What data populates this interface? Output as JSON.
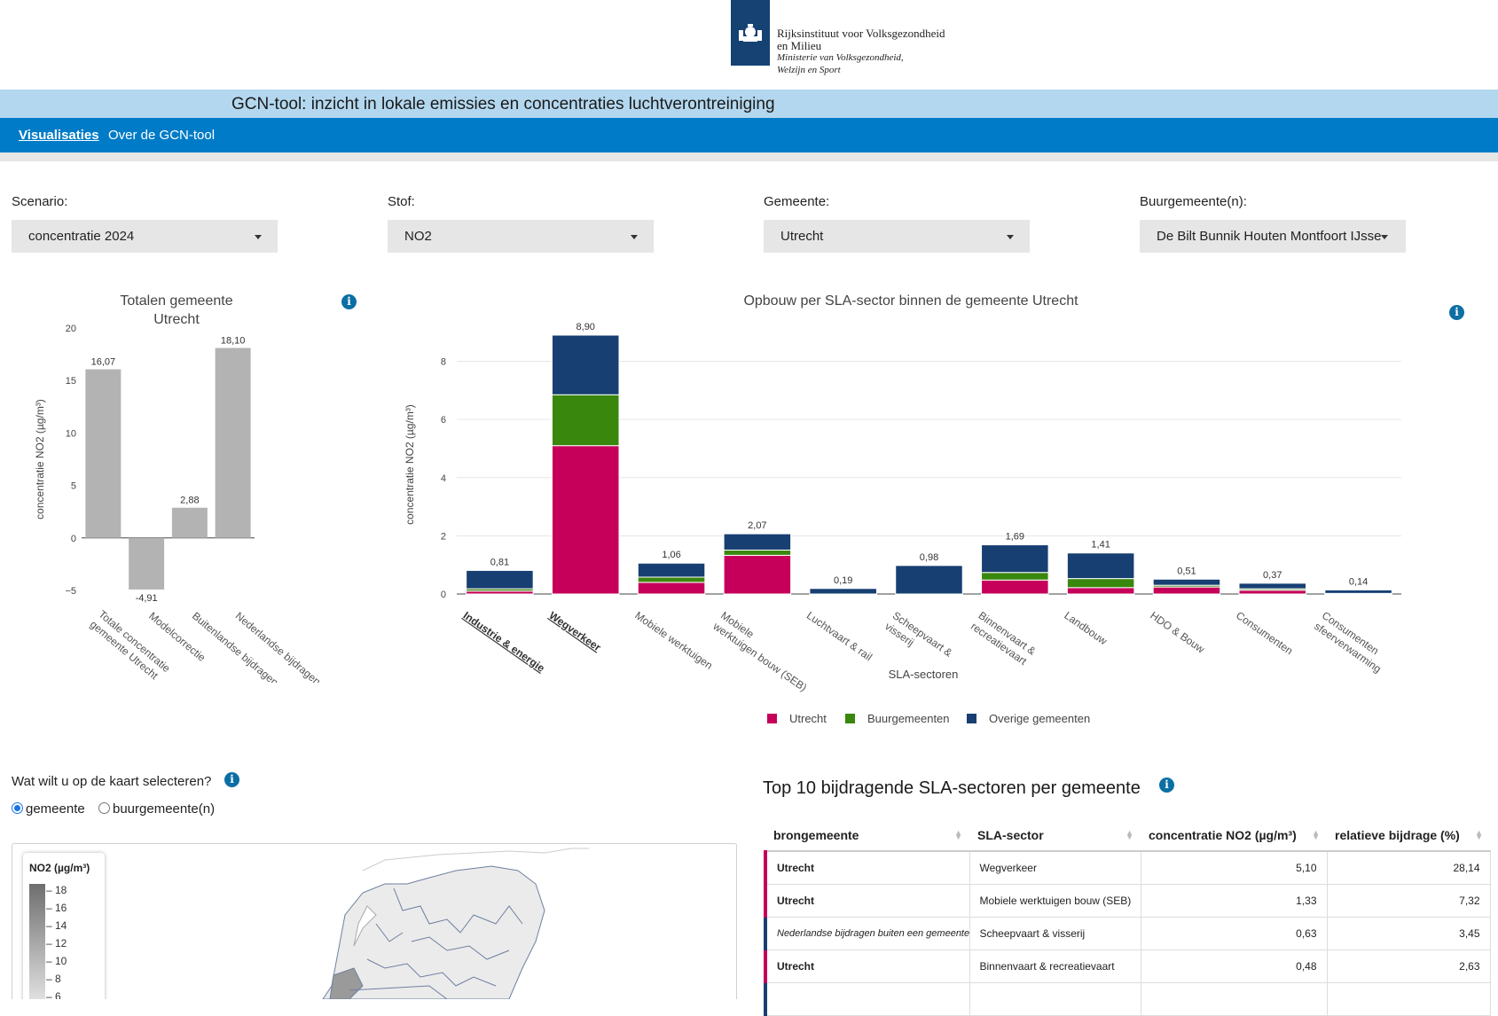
{
  "header": {
    "logo_line1": "Rijksinstituut voor Volksgezondheid",
    "logo_line2": "en Milieu",
    "logo_line3": "Ministerie van Volksgezondheid,",
    "logo_line4": "Welzijn en Sport",
    "app_title": "GCN-tool: inzicht in lokale emissies en concentraties luchtverontreiniging"
  },
  "nav": {
    "visualisaties": "Visualisaties",
    "over": "Over de GCN-tool"
  },
  "filters": {
    "scenario_label": "Scenario:",
    "scenario_value": "concentratie 2024",
    "stof_label": "Stof:",
    "stof_value": "NO2",
    "gemeente_label": "Gemeente:",
    "gemeente_value": "Utrecht",
    "buur_label": "Buurgemeente(n):",
    "buur_value": "De Bilt Bunnik Houten Montfoort IJsse"
  },
  "icons": {
    "info": "info-icon",
    "dropdown": "chevron-down-icon",
    "logo": "rijkswapen-logo"
  },
  "colors": {
    "utrecht": "#c6005a",
    "buurgemeenten": "#39870c",
    "overige": "#173f72",
    "totals": "#b3b3b3",
    "nav": "#007bc7",
    "title_bar": "#b3d7ee"
  },
  "chart_data": [
    {
      "type": "bar",
      "title": "Totalen gemeente Utrecht",
      "ylabel": "concentratie NO2  (µg/m³)",
      "ylim": [
        -5,
        20
      ],
      "yticks": [
        -5,
        0,
        5,
        10,
        15,
        20
      ],
      "categories": [
        "Totale concentratie gemeente Utrecht",
        "Modelcorrectie",
        "Buitenlandse bijdragen",
        "Nederlandse bijdragen"
      ],
      "values": [
        16.07,
        -4.91,
        2.88,
        18.1
      ],
      "labels": [
        "16,07",
        "-4,91",
        "2,88",
        "18,10"
      ]
    },
    {
      "type": "bar",
      "stacked": true,
      "title": "Opbouw per SLA-sector binnen de gemeente Utrecht",
      "xlabel": "SLA-sectoren",
      "ylabel": "concentratie NO2  (µg/m³)",
      "ylim": [
        0,
        8.9
      ],
      "yticks": [
        0,
        2,
        4,
        6,
        8
      ],
      "grid": true,
      "legend_position": "bottom",
      "categories": [
        "Industrie & energie",
        "Wegverkeer",
        "Mobiele werktuigen",
        "Mobiele werktuigen bouw (SEB)",
        "Luchtvaart & rail",
        "Scheepvaart & visserij",
        "Binnenvaart & recreatievaart",
        "Landbouw",
        "HDO & Bouw",
        "Consumenten",
        "Consumenten sfeerverwarming"
      ],
      "bold_categories": [
        "Industrie & energie",
        "Wegverkeer"
      ],
      "totals": [
        "0,81",
        "8,90",
        "1,06",
        "2,07",
        "0,19",
        "0,98",
        "1,69",
        "1,41",
        "0,51",
        "0,37",
        "0,14"
      ],
      "series": [
        {
          "name": "Utrecht",
          "values": [
            0.1,
            5.1,
            0.4,
            1.33,
            0.0,
            0.0,
            0.48,
            0.22,
            0.24,
            0.13,
            0.02
          ]
        },
        {
          "name": "Buurgemeenten",
          "values": [
            0.08,
            1.75,
            0.18,
            0.18,
            0.0,
            0.0,
            0.26,
            0.31,
            0.06,
            0.05,
            0.0
          ]
        },
        {
          "name": "Overige gemeenten",
          "values": [
            0.63,
            2.05,
            0.48,
            0.56,
            0.19,
            0.98,
            0.95,
            0.88,
            0.21,
            0.19,
            0.12
          ]
        }
      ]
    }
  ],
  "map": {
    "question": "Wat wilt u op de kaart selecteren?",
    "option_gemeente": "gemeente",
    "option_buur": "buurgemeente(n)",
    "selected": "gemeente",
    "legend_title": "NO2 (µg/m³)",
    "legend_ticks": [
      "18",
      "16",
      "14",
      "12",
      "10",
      "8",
      "6"
    ]
  },
  "table": {
    "title": "Top 10 bijdragende SLA-sectoren per gemeente",
    "headers": [
      "brongemeente",
      "SLA-sector",
      "concentratie NO2 (µg/m³)",
      "relatieve bijdrage (%)"
    ],
    "rows": [
      {
        "brongemeente": "Utrecht",
        "sector": "Wegverkeer",
        "conc": "5,10",
        "rel": "28,14"
      },
      {
        "brongemeente": "Utrecht",
        "sector": "Mobiele werktuigen bouw (SEB)",
        "conc": "1,33",
        "rel": "7,32"
      },
      {
        "brongemeente": "Nederlandse bijdragen buiten een gemeente",
        "sector": "Scheepvaart & visserij",
        "conc": "0,63",
        "rel": "3,45"
      },
      {
        "brongemeente": "Utrecht",
        "sector": "Binnenvaart & recreatievaart",
        "conc": "0,48",
        "rel": "2,63"
      },
      {
        "brongemeente": "",
        "sector": "",
        "conc": "",
        "rel": ""
      }
    ]
  }
}
